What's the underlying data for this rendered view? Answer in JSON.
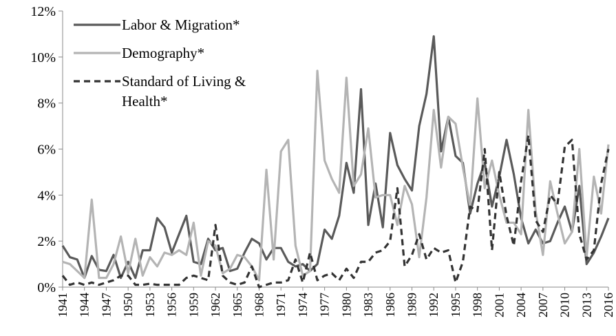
{
  "chart_data": {
    "type": "line",
    "x": [
      1941,
      1942,
      1943,
      1944,
      1945,
      1946,
      1947,
      1948,
      1949,
      1950,
      1951,
      1952,
      1953,
      1954,
      1955,
      1956,
      1957,
      1958,
      1959,
      1960,
      1961,
      1962,
      1963,
      1964,
      1965,
      1966,
      1967,
      1968,
      1969,
      1970,
      1971,
      1972,
      1973,
      1974,
      1975,
      1976,
      1977,
      1978,
      1979,
      1980,
      1981,
      1982,
      1983,
      1984,
      1985,
      1986,
      1987,
      1988,
      1989,
      1990,
      1991,
      1992,
      1993,
      1994,
      1995,
      1996,
      1997,
      1998,
      1999,
      2000,
      2001,
      2002,
      2003,
      2004,
      2005,
      2006,
      2007,
      2008,
      2009,
      2010,
      2011,
      2012,
      2013,
      2014,
      2015,
      2016
    ],
    "xlim": [
      1941,
      2016
    ],
    "xticks": [
      1941,
      1944,
      1947,
      1950,
      1953,
      1956,
      1959,
      1962,
      1965,
      1968,
      1971,
      1974,
      1977,
      1980,
      1983,
      1986,
      1989,
      1992,
      1995,
      1998,
      2001,
      2004,
      2007,
      2010,
      2013,
      2016
    ],
    "ylim": [
      0,
      12
    ],
    "yticks": [
      {
        "value": 0,
        "label": "0%"
      },
      {
        "value": 2,
        "label": "2%"
      },
      {
        "value": 4,
        "label": "4%"
      },
      {
        "value": 6,
        "label": "6%"
      },
      {
        "value": 8,
        "label": "8%"
      },
      {
        "value": 10,
        "label": "10%"
      },
      {
        "value": 12,
        "label": "12%"
      }
    ],
    "legend": "upper left",
    "series": [
      {
        "name": "Labor & Migration*",
        "color": "#5a5a5a",
        "dash": "solid",
        "values": [
          1.8,
          1.3,
          1.2,
          0.4,
          1.35,
          0.75,
          0.7,
          1.4,
          0.4,
          1.1,
          0.4,
          1.6,
          1.6,
          3.0,
          2.6,
          1.5,
          2.3,
          3.1,
          1.1,
          1.0,
          2.1,
          1.6,
          1.7,
          0.7,
          0.8,
          1.5,
          2.1,
          1.9,
          1.2,
          1.7,
          1.7,
          1.1,
          0.9,
          1.0,
          0.7,
          1.0,
          2.5,
          2.1,
          3.1,
          5.4,
          4.1,
          8.6,
          2.7,
          4.5,
          2.6,
          6.7,
          5.3,
          4.7,
          4.2,
          7.0,
          8.4,
          10.9,
          5.9,
          7.4,
          5.7,
          5.4,
          3.2,
          4.5,
          5.4,
          3.5,
          4.8,
          6.4,
          4.9,
          3.0,
          1.9,
          2.5,
          1.9,
          2.0,
          2.8,
          3.5,
          2.4,
          4.4,
          1.0,
          1.5,
          2.2,
          3.0
        ]
      },
      {
        "name": "Demography*",
        "color": "#b4b4b4",
        "dash": "solid",
        "values": [
          1.1,
          1.0,
          0.7,
          0.4,
          3.8,
          0.4,
          0.4,
          1.0,
          2.2,
          0.6,
          2.1,
          0.5,
          1.3,
          0.9,
          1.5,
          1.4,
          1.6,
          1.4,
          2.8,
          0.5,
          2.0,
          1.8,
          0.6,
          0.8,
          1.4,
          1.3,
          0.9,
          0.3,
          5.1,
          1.2,
          5.9,
          6.4,
          1.8,
          0.5,
          0.7,
          9.4,
          5.5,
          4.7,
          4.1,
          9.1,
          4.4,
          4.9,
          6.9,
          3.9,
          4.0,
          4.0,
          2.7,
          4.4,
          3.6,
          1.3,
          3.9,
          7.7,
          5.2,
          7.4,
          7.1,
          5.2,
          3.5,
          8.2,
          4.3,
          5.5,
          4.0,
          2.8,
          2.8,
          2.3,
          7.7,
          3.3,
          1.4,
          4.6,
          3.2,
          1.9,
          2.4,
          6.0,
          1.3,
          4.8,
          3.2,
          6.2
        ]
      },
      {
        "name": "Standard of Living & Health*",
        "color": "#333333",
        "dash": "dashed",
        "values": [
          0.5,
          0.1,
          0.2,
          0.1,
          0.2,
          0.1,
          0.2,
          0.3,
          0.5,
          0.5,
          0.1,
          0.1,
          0.15,
          0.1,
          0.1,
          0.1,
          0.1,
          0.4,
          0.5,
          0.4,
          0.3,
          2.7,
          0.5,
          0.2,
          0.1,
          0.2,
          0.9,
          0.0,
          0.1,
          0.2,
          0.2,
          0.3,
          1.2,
          0.2,
          1.5,
          0.3,
          0.5,
          0.6,
          0.3,
          0.8,
          0.4,
          1.1,
          1.1,
          1.5,
          1.6,
          2.0,
          4.3,
          0.9,
          1.4,
          2.3,
          1.2,
          1.7,
          1.5,
          1.6,
          0.2,
          1.1,
          3.5,
          3.3,
          6.0,
          1.6,
          5.0,
          3.1,
          1.8,
          4.6,
          6.6,
          2.9,
          2.4,
          4.0,
          3.6,
          6.1,
          6.4,
          2.3,
          1.2,
          1.6,
          4.5,
          6.0
        ]
      }
    ]
  }
}
